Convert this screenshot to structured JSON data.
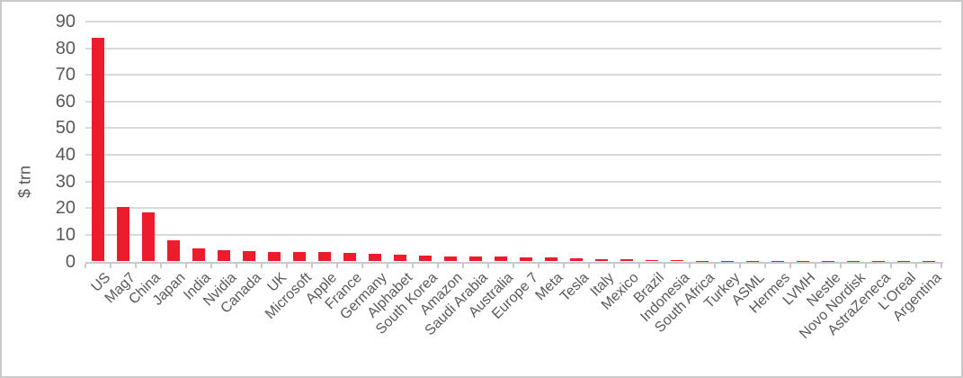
{
  "chart_data": {
    "type": "bar",
    "title": "",
    "xlabel": "",
    "ylabel": "$ trn",
    "ylim": [
      0,
      90
    ],
    "yticks": [
      0,
      10,
      20,
      30,
      40,
      50,
      60,
      70,
      80,
      90
    ],
    "grid": "horizontal",
    "legend": "none",
    "categories": [
      "US",
      "Mag7",
      "China",
      "Japan",
      "India",
      "Nvidia",
      "Canada",
      "UK",
      "Microsoft",
      "Apple",
      "France",
      "Germany",
      "Alphabet",
      "South Korea",
      "Amazon",
      "Saudi Arabia",
      "Australia",
      "Europe 7",
      "Meta",
      "Tesla",
      "Italy",
      "Mexico",
      "Brazil",
      "Indonesia",
      "South Africa",
      "Turkey",
      "ASML",
      "Hermes",
      "LVMH",
      "Nestle",
      "Novo Nordisk",
      "AstraZeneca",
      "L'Oreal",
      "Argentina"
    ],
    "values": [
      84,
      20.3,
      18.5,
      8,
      5,
      4.2,
      3.9,
      3.7,
      3.6,
      3.4,
      3.2,
      2.8,
      2.4,
      2.2,
      2.0,
      1.9,
      1.8,
      1.6,
      1.5,
      1.1,
      0.9,
      0.7,
      0.6,
      0.6,
      0.3,
      0.2,
      0.2,
      0.2,
      0.2,
      0.2,
      0.2,
      0.2,
      0.15,
      0.1
    ]
  },
  "colors": {
    "bar": "#ed1c2d",
    "grid": "#d9d9d9",
    "axis": "#c9c9c9",
    "text": "#595959",
    "border": "#c9c9c9",
    "background": "#ffffff"
  }
}
